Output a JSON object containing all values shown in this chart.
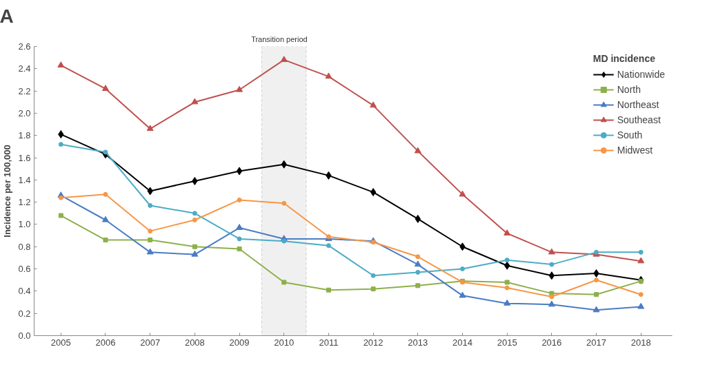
{
  "chart_data": {
    "type": "line",
    "ylabel": "Incidence per 100,000",
    "legend_title": "MD incidence",
    "annotations": [
      "A"
    ],
    "x": [
      2005,
      2006,
      2007,
      2008,
      2009,
      2010,
      2011,
      2012,
      2013,
      2014,
      2015,
      2016,
      2017,
      2018
    ],
    "xlim": [
      2004.4,
      2018.7
    ],
    "xticks": [
      2005,
      2006,
      2007,
      2008,
      2009,
      2010,
      2011,
      2012,
      2013,
      2014,
      2015,
      2016,
      2017,
      2018
    ],
    "ylim": [
      0,
      2.6
    ],
    "yticks": [
      {
        "value": 0,
        "label": "0.0"
      },
      0.2,
      0.4,
      0.6,
      0.8,
      {
        "value": 1.0,
        "label": "1.0"
      },
      1.2,
      1.4,
      1.6,
      1.8,
      {
        "value": 2.0,
        "label": "2.0"
      },
      2.2,
      2.4,
      2.6
    ],
    "grid": false,
    "legend": "top right",
    "line_style": "solid",
    "bands": [
      {
        "axis": "x",
        "from": 2009.5,
        "to": 2010.5,
        "label": "Transition period",
        "color": "#f0f0f0"
      }
    ],
    "series": [
      {
        "name": "Nationwide",
        "color": "#000000",
        "marker": "diamond",
        "values": [
          1.81,
          1.63,
          1.3,
          1.39,
          1.48,
          1.54,
          1.44,
          1.29,
          1.05,
          0.8,
          0.63,
          0.54,
          0.56,
          0.5
        ]
      },
      {
        "name": "North",
        "color": "#8db04a",
        "marker": "square",
        "values": [
          1.08,
          0.86,
          0.86,
          0.8,
          0.78,
          0.48,
          0.41,
          0.42,
          0.45,
          0.49,
          0.48,
          0.38,
          0.37,
          0.49
        ]
      },
      {
        "name": "Northeast",
        "color": "#4a7cc4",
        "marker": "triangle",
        "values": [
          1.26,
          1.04,
          0.75,
          0.73,
          0.97,
          0.87,
          0.87,
          0.85,
          0.64,
          0.36,
          0.29,
          0.28,
          0.23,
          0.26
        ]
      },
      {
        "name": "Southeast",
        "color": "#c0504d",
        "marker": "triangle",
        "values": [
          2.43,
          2.22,
          1.86,
          2.1,
          2.21,
          2.48,
          2.33,
          2.07,
          1.66,
          1.27,
          0.92,
          0.75,
          0.73,
          0.67
        ]
      },
      {
        "name": "South",
        "color": "#4bacc6",
        "marker": "circle",
        "values": [
          1.72,
          1.65,
          1.17,
          1.1,
          0.87,
          0.85,
          0.81,
          0.54,
          0.57,
          0.6,
          0.68,
          0.64,
          0.75,
          0.75
        ]
      },
      {
        "name": "Midwest",
        "color": "#f79646",
        "marker": "circle",
        "values": [
          1.24,
          1.27,
          0.94,
          1.04,
          1.22,
          1.19,
          0.89,
          0.84,
          0.71,
          0.48,
          0.43,
          0.35,
          0.5,
          0.37
        ]
      }
    ]
  }
}
